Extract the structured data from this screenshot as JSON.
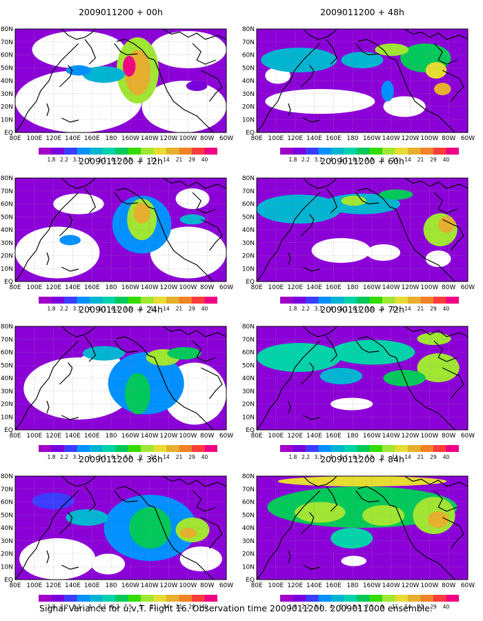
{
  "caption": "Signal Variance for u,v,T. Flight 16. Observation time 2009011200. 2009011000 ensemble.",
  "colors": {
    "background": "#ffffff",
    "coast": "#000000",
    "grid": "#9a9a9a",
    "field_default": "#8c00d8"
  },
  "chart_data": {
    "type": "heatmap",
    "colorbar": {
      "labels": [
        "1.8",
        "2.2",
        "3.1",
        "4",
        "5.1",
        "6.3",
        "7.5",
        "9",
        "11",
        "14",
        "21",
        "29",
        "40"
      ],
      "values": [
        1.8,
        2.2,
        3.1,
        4,
        5.1,
        6.3,
        7.5,
        9,
        11,
        14,
        21,
        29,
        40
      ],
      "colors": [
        "#a000c8",
        "#7800dc",
        "#3c3cff",
        "#0090ff",
        "#00b4d2",
        "#00d2aa",
        "#00c85a",
        "#32dc00",
        "#a0e632",
        "#e6dc32",
        "#e6af2d",
        "#f08228",
        "#fa3c3c",
        "#f00082"
      ]
    },
    "xticks": [
      "80E",
      "100E",
      "120E",
      "140E",
      "160E",
      "180",
      "160W",
      "140W",
      "120W",
      "100W",
      "80W",
      "60W"
    ],
    "yticks": [
      "EQ",
      "10N",
      "20N",
      "30N",
      "40N",
      "50N",
      "60N",
      "70N",
      "80N"
    ],
    "panels": [
      {
        "title": "2009011200 + 00h",
        "lead_hours": 0
      },
      {
        "title": "2009011200 + 12h",
        "lead_hours": 12
      },
      {
        "title": "2009011200 + 24h",
        "lead_hours": 24
      },
      {
        "title": "2009011200 + 36h",
        "lead_hours": 36
      },
      {
        "title": "2009011200 + 48h",
        "lead_hours": 48
      },
      {
        "title": "2009011200 + 60h",
        "lead_hours": 60
      },
      {
        "title": "2009011200 + 72h",
        "lead_hours": 72
      },
      {
        "title": "2009011200 + 84h",
        "lead_hours": 84
      }
    ]
  }
}
